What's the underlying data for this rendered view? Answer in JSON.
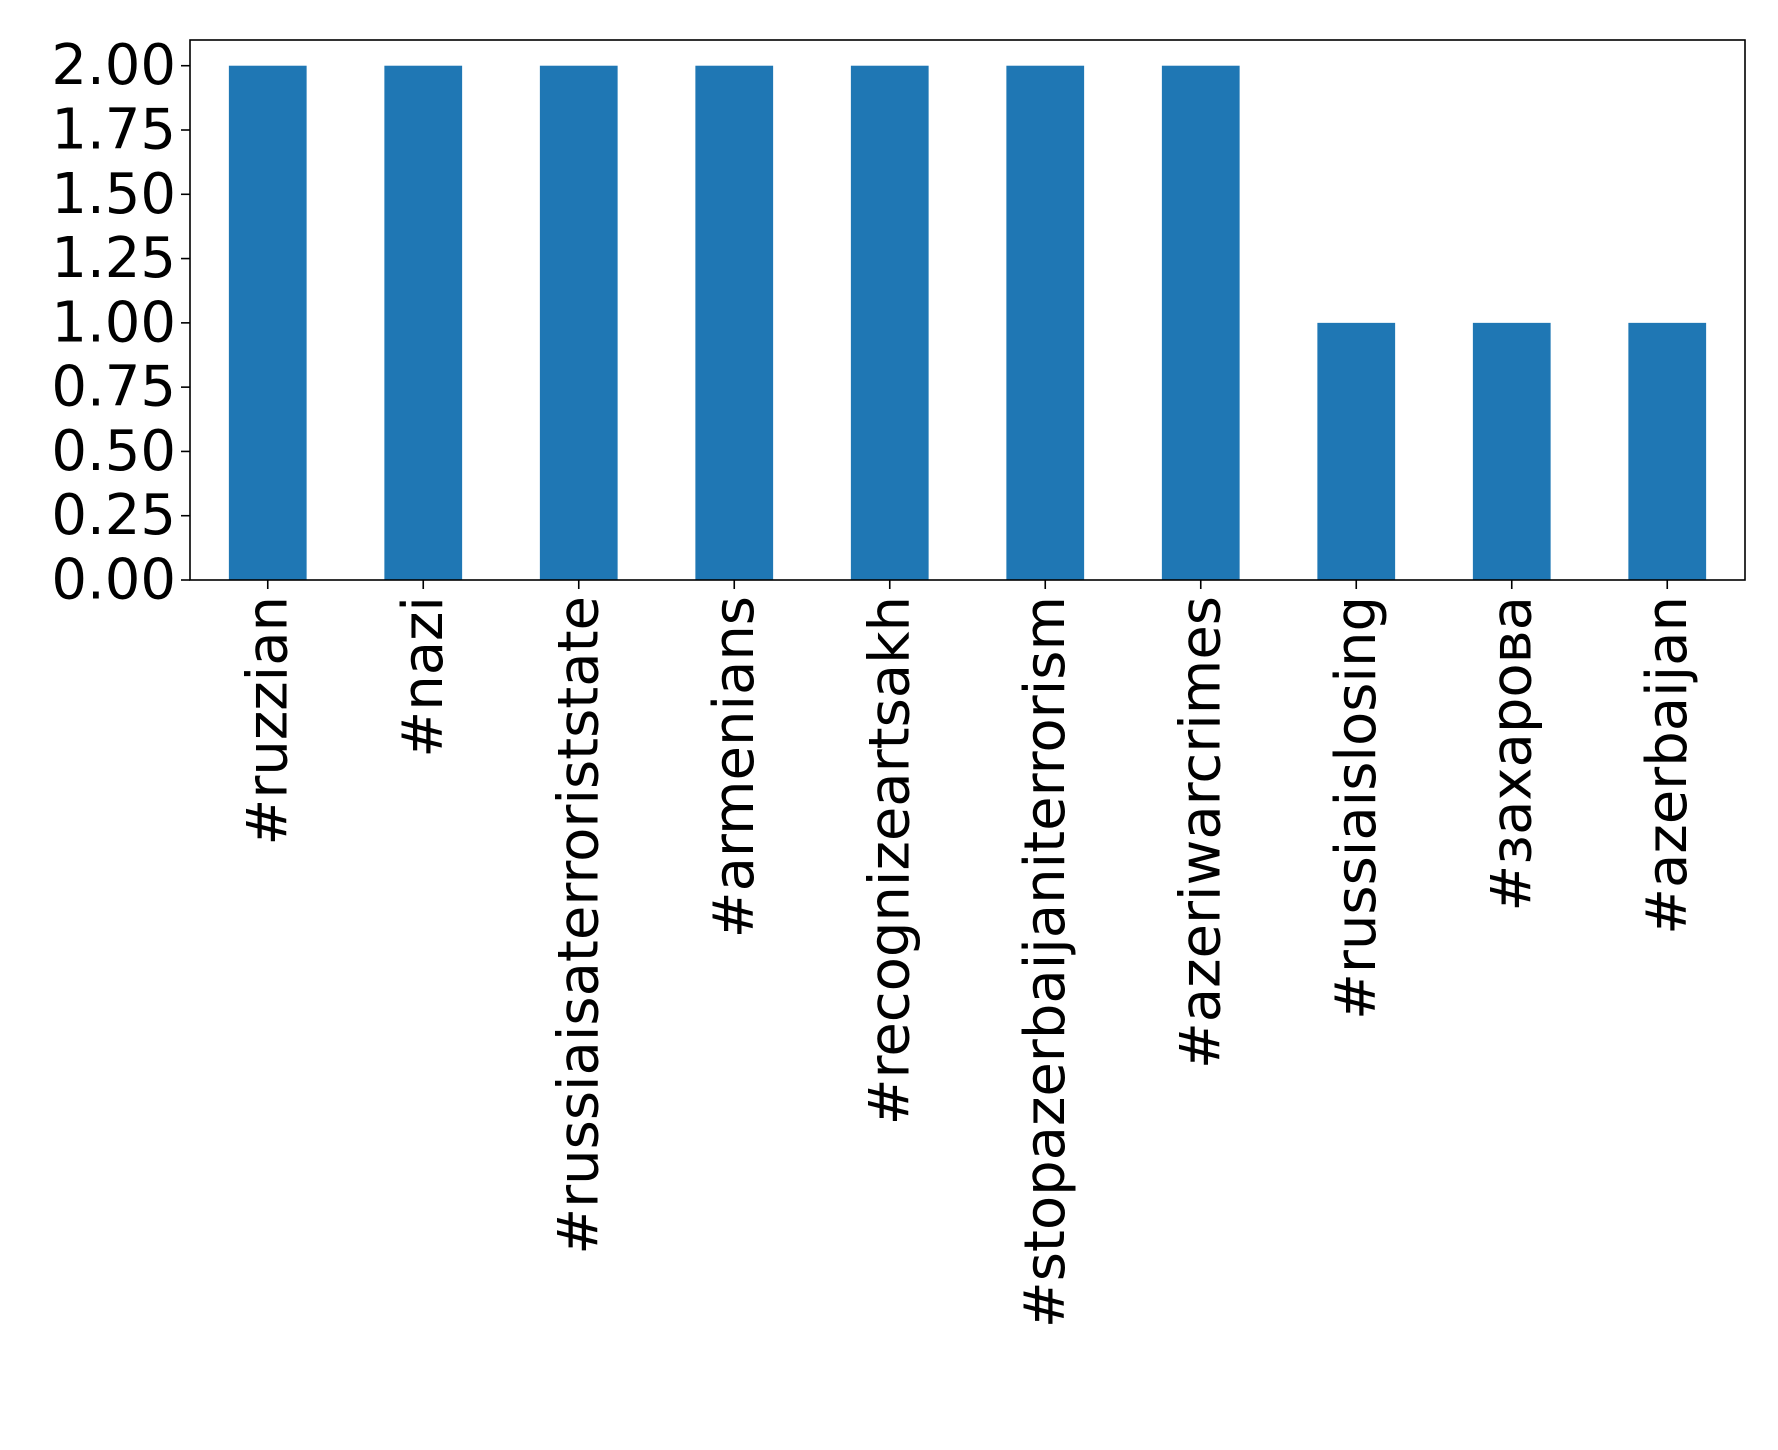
{
  "chart_data": {
    "type": "bar",
    "title": "",
    "xlabel": "",
    "ylabel": "",
    "categories": [
      "#ruzzian",
      "#nazi",
      "#russiaisaterroriststate",
      "#armenians",
      "#recognizeartsakh",
      "#stopazerbaijaniterrorism",
      "#azeriwarcrimes",
      "#russiaislosing",
      "#захарова",
      "#azerbaijan"
    ],
    "values": [
      2,
      2,
      2,
      2,
      2,
      2,
      2,
      1,
      1,
      1
    ],
    "ylim": [
      0,
      2.1
    ],
    "yticks": [
      "0.00",
      "0.25",
      "0.50",
      "0.75",
      "1.00",
      "1.25",
      "1.50",
      "1.75",
      "2.00"
    ],
    "grid": false,
    "legend": "none",
    "bar_color": "#1f77b4"
  }
}
